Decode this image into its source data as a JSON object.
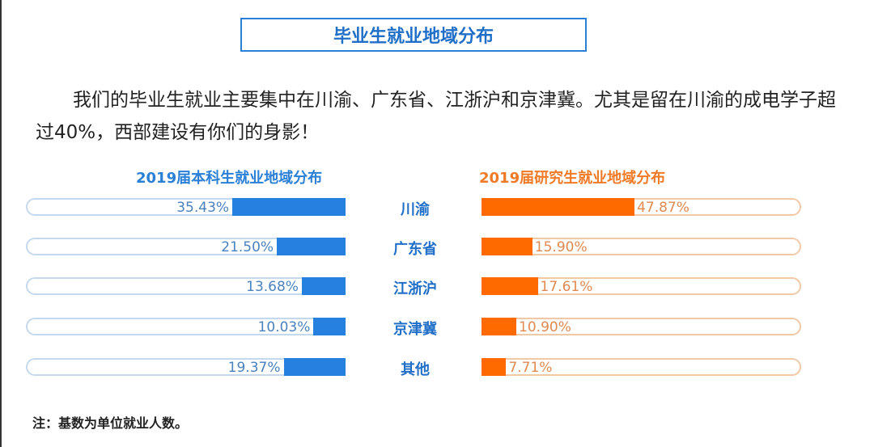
{
  "title": "毕业生就业地域分布",
  "paragraph": "我们的毕业生就业主要集中在川渝、广东省、江浙沪和京津冀。尤其是留在川渝的成电学子超过40%，西部建设有你们的身影！",
  "note": "注：基数为单位就业人数。",
  "colors": {
    "undergrad": "#2680e0",
    "graduate": "#ff6a00",
    "title": "#1f6fc8"
  },
  "chart_data": [
    {
      "type": "bar",
      "orientation": "horizontal",
      "direction": "right-to-left",
      "title": "2019届本科生就业地域分布",
      "categories": [
        "川渝",
        "广东省",
        "江浙沪",
        "京津冀",
        "其他"
      ],
      "values": [
        35.43,
        21.5,
        13.68,
        10.03,
        19.37
      ],
      "labels": [
        "35.43%",
        "21.50%",
        "13.68%",
        "10.03%",
        "19.37%"
      ],
      "xlim": [
        0,
        100
      ]
    },
    {
      "type": "bar",
      "orientation": "horizontal",
      "direction": "left-to-right",
      "title": "2019届研究生就业地域分布",
      "categories": [
        "川渝",
        "广东省",
        "江浙沪",
        "京津冀",
        "其他"
      ],
      "values": [
        47.87,
        15.9,
        17.61,
        10.9,
        7.71
      ],
      "labels": [
        "47.87%",
        "15.90%",
        "17.61%",
        "10.90%",
        "7.71%"
      ],
      "xlim": [
        0,
        100
      ]
    }
  ]
}
